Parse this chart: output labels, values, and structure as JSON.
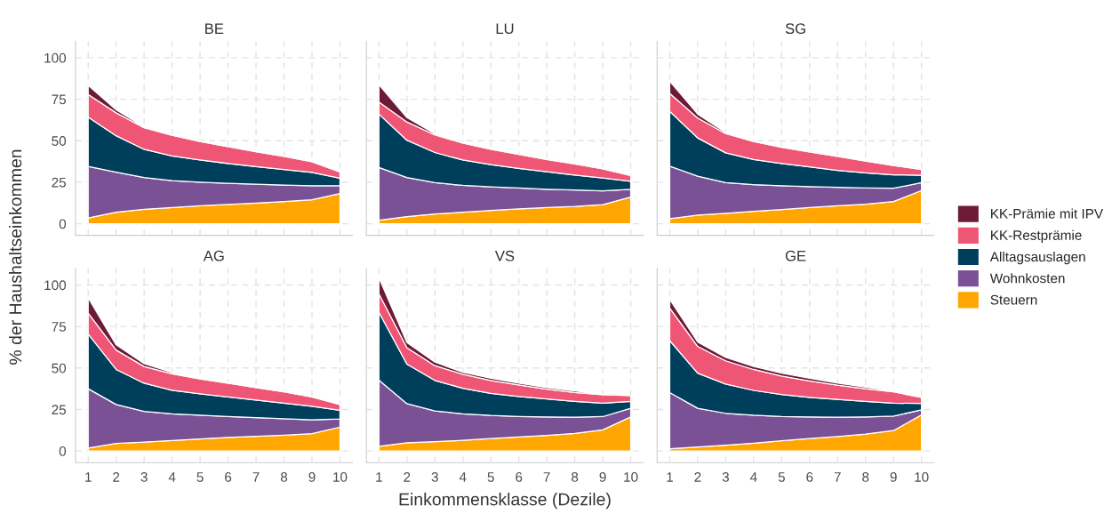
{
  "chart_data": [
    {
      "type": "area",
      "stacked": true,
      "title": "BE",
      "ylabel": "% der Haushaltseinkommen",
      "legend": "right",
      "grid": true,
      "tick_labels": "y",
      "x": [
        1,
        2,
        3,
        4,
        5,
        6,
        7,
        8,
        9,
        10
      ],
      "xlim": [
        0.55,
        10.45
      ],
      "xticks": [
        1,
        2,
        3,
        4,
        5,
        6,
        7,
        8,
        9,
        10
      ],
      "ylim": [
        -7,
        110
      ],
      "yticks": [
        0,
        25,
        50,
        75,
        100
      ],
      "series": [
        {
          "name": "Steuern",
          "color": "#ffa600",
          "values": [
            3.5,
            7,
            8.7,
            9.7,
            10.8,
            11.6,
            12.5,
            13.4,
            14.4,
            18.2
          ]
        },
        {
          "name": "Wohnkosten",
          "color": "#7a5195",
          "values": [
            31,
            24,
            19.1,
            16.3,
            14.2,
            12.7,
            11.3,
            9.9,
            8.5,
            4.7
          ]
        },
        {
          "name": "Alltagsauslagen",
          "color": "#003f5c",
          "values": [
            29.7,
            22,
            17,
            14.8,
            13.4,
            12,
            10.6,
            9.3,
            8,
            4.5
          ]
        },
        {
          "name": "KK-Restprämie",
          "color": "#ef5675",
          "values": [
            13.6,
            13.8,
            13,
            12.5,
            11.1,
            10.1,
            9,
            7.9,
            6.4,
            3.8
          ]
        },
        {
          "name": "KK-Prämie mit IPV",
          "color": "#6d1a36",
          "values": [
            5.5,
            1.8,
            0.4,
            0.2,
            0.2,
            0.1,
            0.2,
            0.1,
            0.2,
            0.2
          ]
        }
      ]
    },
    {
      "type": "area",
      "stacked": true,
      "title": "LU",
      "grid": true,
      "tick_labels": false,
      "x": [
        1,
        2,
        3,
        4,
        5,
        6,
        7,
        8,
        9,
        10
      ],
      "xlim": [
        0.55,
        10.45
      ],
      "xticks": [
        1,
        2,
        3,
        4,
        5,
        6,
        7,
        8,
        9,
        10
      ],
      "ylim": [
        -7,
        110
      ],
      "yticks": [
        0,
        25,
        50,
        75,
        100
      ],
      "series": [
        {
          "color": "#ffa600",
          "values": [
            2.1,
            4.3,
            5.9,
            6.9,
            8,
            8.9,
            9.7,
            10.4,
            11.5,
            16.1
          ]
        },
        {
          "color": "#7a5195",
          "values": [
            31.8,
            23.5,
            18.8,
            16.2,
            14.2,
            12.6,
            11.1,
            9.9,
            8.3,
            4.7
          ]
        },
        {
          "color": "#003f5c",
          "values": [
            32.1,
            22.5,
            18.2,
            15.3,
            13.4,
            11.8,
            10.5,
            9,
            7.8,
            4.7
          ]
        },
        {
          "color": "#ef5675",
          "values": [
            7.3,
            11,
            10.6,
            10.2,
            9.2,
            8.4,
            7.4,
            6.7,
            5.4,
            3.5
          ]
        },
        {
          "color": "#6d1a36",
          "values": [
            10.4,
            2.6,
            0.7,
            0.4,
            0.3,
            0.1,
            0.4,
            0.3,
            0.5,
            0.1
          ]
        }
      ]
    },
    {
      "type": "area",
      "stacked": true,
      "title": "SG",
      "grid": true,
      "tick_labels": false,
      "x": [
        1,
        2,
        3,
        4,
        5,
        6,
        7,
        8,
        9,
        10
      ],
      "xlim": [
        0.55,
        10.45
      ],
      "xticks": [
        1,
        2,
        3,
        4,
        5,
        6,
        7,
        8,
        9,
        10
      ],
      "ylim": [
        -7,
        110
      ],
      "yticks": [
        0,
        25,
        50,
        75,
        100
      ],
      "series": [
        {
          "color": "#ffa600",
          "values": [
            3,
            5.2,
            6.3,
            7.5,
            8.5,
            9.7,
            10.8,
            11.8,
            13.4,
            20
          ]
        },
        {
          "color": "#7a5195",
          "values": [
            31.7,
            23.4,
            18.5,
            16.1,
            14.4,
            12.7,
            11.1,
            9.7,
            8,
            4.7
          ]
        },
        {
          "color": "#003f5c",
          "values": [
            33,
            23.1,
            17.9,
            15.1,
            13.4,
            11.8,
            10.2,
            9.1,
            8.1,
            4.5
          ]
        },
        {
          "color": "#ef5675",
          "values": [
            10.8,
            12,
            11.6,
            10.8,
            9.7,
            9,
            8.4,
            7.2,
            5.6,
            3.4
          ]
        },
        {
          "color": "#6d1a36",
          "values": [
            7.4,
            2.3,
            0.7,
            0.5,
            0.4,
            0.2,
            0.1,
            0.2,
            0.3,
            0.2
          ]
        }
      ]
    },
    {
      "type": "area",
      "stacked": true,
      "title": "AG",
      "grid": true,
      "x": [
        1,
        2,
        3,
        4,
        5,
        6,
        7,
        8,
        9,
        10
      ],
      "xlim": [
        0.55,
        10.45
      ],
      "xticks": [
        1,
        2,
        3,
        4,
        5,
        6,
        7,
        8,
        9,
        10
      ],
      "ylim": [
        -7,
        110
      ],
      "yticks": [
        0,
        25,
        50,
        75,
        100
      ],
      "series": [
        {
          "color": "#ffa600",
          "values": [
            1.7,
            4.5,
            5.4,
            6.3,
            7.3,
            8.2,
            8.9,
            9.5,
            10.4,
            14.4
          ]
        },
        {
          "color": "#7a5195",
          "values": [
            35.8,
            23.5,
            18.4,
            16.1,
            14.2,
            12.6,
            11.2,
            9.9,
            8.4,
            4.9
          ]
        },
        {
          "color": "#003f5c",
          "values": [
            33,
            21.1,
            17,
            14.2,
            12.9,
            11.7,
            10.6,
            9.4,
            8.1,
            5.2
          ]
        },
        {
          "color": "#ef5675",
          "values": [
            12.5,
            11.7,
            10.1,
            9.9,
            9,
            8.3,
            7.5,
            6.8,
            5.7,
            3.5
          ]
        },
        {
          "color": "#6d1a36",
          "values": [
            9.2,
            3.1,
            1.7,
            0.7,
            0.5,
            0.5,
            0.5,
            0.3,
            0.2,
            0.1
          ]
        }
      ]
    },
    {
      "type": "area",
      "stacked": true,
      "title": "VS",
      "xlabel": "Einkommensklasse (Dezile)",
      "grid": true,
      "tick_labels": "x",
      "x": [
        1,
        2,
        3,
        4,
        5,
        6,
        7,
        8,
        9,
        10
      ],
      "xlim": [
        0.55,
        10.45
      ],
      "xticks": [
        1,
        2,
        3,
        4,
        5,
        6,
        7,
        8,
        9,
        10
      ],
      "ylim": [
        -7,
        110
      ],
      "yticks": [
        0,
        25,
        50,
        75,
        100
      ],
      "series": [
        {
          "color": "#ffa600",
          "values": [
            2.8,
            4.9,
            5.6,
            6.4,
            7.5,
            8.5,
            9.4,
            10.6,
            12.7,
            20.5
          ]
        },
        {
          "color": "#7a5195",
          "values": [
            39.9,
            23.6,
            18.5,
            16,
            13.9,
            12.3,
            11.1,
            9.7,
            8,
            5.2
          ]
        },
        {
          "color": "#003f5c",
          "values": [
            40.8,
            23.8,
            18.4,
            15.4,
            13.3,
            12,
            10.8,
            9.6,
            8.1,
            4.2
          ]
        },
        {
          "color": "#ef5675",
          "values": [
            11.1,
            9.9,
            8.9,
            8.4,
            7.8,
            7,
            5.9,
            5.3,
            5.1,
            3.4
          ]
        },
        {
          "color": "#6d1a36",
          "values": [
            9.7,
            3.1,
            2.1,
            1.2,
            1.3,
            1,
            1,
            0.9,
            0.3,
            0.1
          ]
        }
      ]
    },
    {
      "type": "area",
      "stacked": true,
      "title": "GE",
      "grid": true,
      "tick_labels": "x",
      "x": [
        1,
        2,
        3,
        4,
        5,
        6,
        7,
        8,
        9,
        10
      ],
      "xlim": [
        0.55,
        10.45
      ],
      "xticks": [
        1,
        2,
        3,
        4,
        5,
        6,
        7,
        8,
        9,
        10
      ],
      "ylim": [
        -7,
        110
      ],
      "yticks": [
        0,
        25,
        50,
        75,
        100
      ],
      "series": [
        {
          "color": "#ffa600",
          "values": [
            1.4,
            2.4,
            3.5,
            4.7,
            6.1,
            7.5,
            8.7,
            10.2,
            12.3,
            21.7
          ]
        },
        {
          "color": "#7a5195",
          "values": [
            33.8,
            23.3,
            19.2,
            16.8,
            14.7,
            13,
            11.6,
            10.3,
            8.7,
            3.1
          ]
        },
        {
          "color": "#003f5c",
          "values": [
            31.3,
            21.2,
            17.6,
            15,
            13.2,
            11.8,
            10.8,
            9.4,
            7.8,
            3.8
          ]
        },
        {
          "color": "#ef5675",
          "values": [
            19.6,
            16.1,
            14,
            12.6,
            11.1,
            9.9,
            8.5,
            7.6,
            6.8,
            3.7
          ]
        },
        {
          "color": "#6d1a36",
          "values": [
            5.2,
            2.6,
            2.1,
            1.8,
            1.8,
            1.6,
            1.3,
            1,
            0.5,
            0.3
          ]
        }
      ]
    }
  ]
}
